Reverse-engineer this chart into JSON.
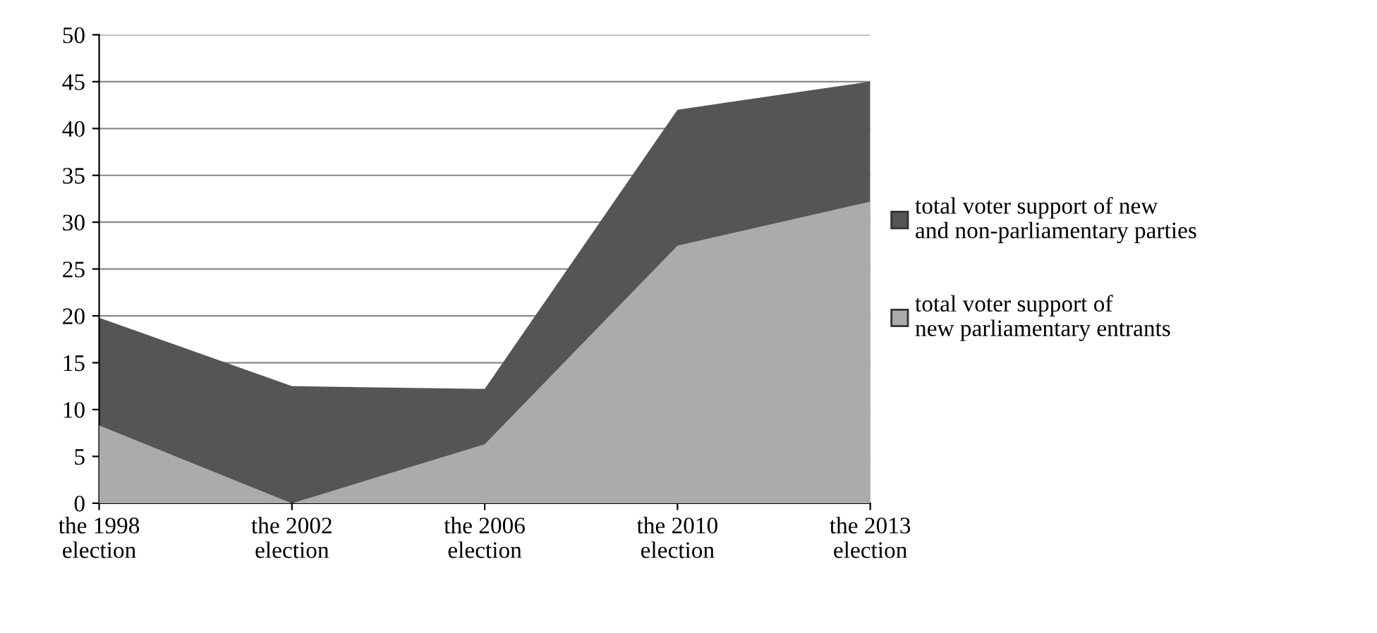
{
  "chart_data": {
    "type": "area",
    "categories": [
      "the 1998 election",
      "the 2002 election",
      "the 2006 election",
      "the 2010 election",
      "the 2013 election"
    ],
    "series": [
      {
        "name": "total voter support of new and non-parliamentary parties",
        "color": "#555555",
        "values": [
          19.8,
          12.5,
          12.2,
          42,
          45
        ]
      },
      {
        "name": "total voter support of new parliamentary entrants",
        "color": "#ababab",
        "values": [
          8.3,
          0,
          6.3,
          27.5,
          32.2
        ]
      }
    ],
    "ylim": [
      0,
      50
    ],
    "yticks": [
      0,
      5,
      10,
      15,
      20,
      25,
      30,
      35,
      40,
      45,
      50
    ],
    "grid": "y",
    "legend": "right"
  }
}
